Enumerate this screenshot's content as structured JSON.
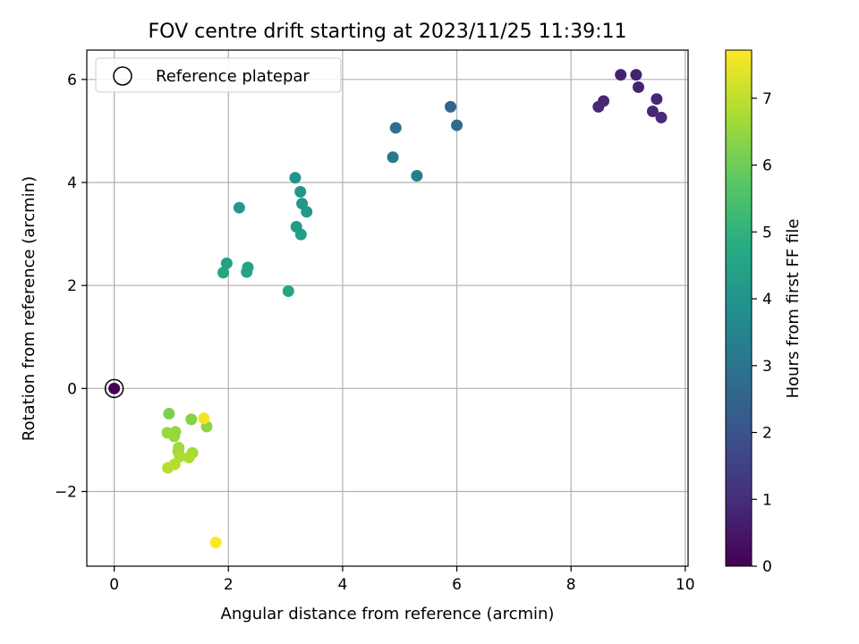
{
  "chart_data": {
    "type": "scatter",
    "title": "FOV centre drift starting at 2023/11/25 11:39:11",
    "xlabel": "Angular distance from reference (arcmin)",
    "ylabel": "Rotation from reference (arcmin)",
    "xlim": [
      -0.48,
      10.05
    ],
    "ylim": [
      -3.45,
      6.57
    ],
    "xticks": [
      0,
      2,
      4,
      6,
      8,
      10
    ],
    "yticks": [
      -2,
      0,
      2,
      4,
      6
    ],
    "grid": true,
    "legend": {
      "placement": "top-left",
      "entries": [
        "Reference platepar"
      ]
    },
    "reference_point": {
      "x": 0,
      "y": 0
    },
    "colorbar": {
      "label": "Hours from first FF file",
      "range": [
        0,
        7.72
      ],
      "ticks": [
        0,
        1,
        2,
        3,
        4,
        5,
        6,
        7
      ],
      "colormap": "viridis"
    },
    "points": [
      {
        "x": 0.0,
        "y": 0.0,
        "h": 0.0
      },
      {
        "x": 8.87,
        "y": 6.09,
        "h": 0.7
      },
      {
        "x": 9.14,
        "y": 6.09,
        "h": 0.72
      },
      {
        "x": 9.18,
        "y": 5.85,
        "h": 0.75
      },
      {
        "x": 9.5,
        "y": 5.62,
        "h": 0.8
      },
      {
        "x": 8.57,
        "y": 5.58,
        "h": 0.85
      },
      {
        "x": 8.48,
        "y": 5.47,
        "h": 0.88
      },
      {
        "x": 9.43,
        "y": 5.38,
        "h": 0.9
      },
      {
        "x": 9.58,
        "y": 5.26,
        "h": 0.95
      },
      {
        "x": 5.89,
        "y": 5.47,
        "h": 2.5
      },
      {
        "x": 6.0,
        "y": 5.11,
        "h": 2.7
      },
      {
        "x": 4.93,
        "y": 5.06,
        "h": 2.9
      },
      {
        "x": 4.88,
        "y": 4.49,
        "h": 3.1
      },
      {
        "x": 5.3,
        "y": 4.13,
        "h": 3.2
      },
      {
        "x": 3.17,
        "y": 4.09,
        "h": 4.0
      },
      {
        "x": 3.26,
        "y": 3.82,
        "h": 4.05
      },
      {
        "x": 3.29,
        "y": 3.59,
        "h": 4.1
      },
      {
        "x": 3.37,
        "y": 3.43,
        "h": 4.15
      },
      {
        "x": 2.19,
        "y": 3.51,
        "h": 4.2
      },
      {
        "x": 3.19,
        "y": 3.14,
        "h": 4.25
      },
      {
        "x": 3.27,
        "y": 2.99,
        "h": 4.3
      },
      {
        "x": 1.97,
        "y": 2.43,
        "h": 4.4
      },
      {
        "x": 2.34,
        "y": 2.35,
        "h": 4.45
      },
      {
        "x": 2.32,
        "y": 2.26,
        "h": 4.5
      },
      {
        "x": 1.91,
        "y": 2.25,
        "h": 4.55
      },
      {
        "x": 3.05,
        "y": 1.89,
        "h": 4.6
      },
      {
        "x": 0.96,
        "y": -0.49,
        "h": 6.2
      },
      {
        "x": 1.35,
        "y": -0.6,
        "h": 6.3
      },
      {
        "x": 1.62,
        "y": -0.74,
        "h": 6.4
      },
      {
        "x": 0.93,
        "y": -0.86,
        "h": 6.5
      },
      {
        "x": 1.07,
        "y": -0.84,
        "h": 6.5
      },
      {
        "x": 1.05,
        "y": -0.93,
        "h": 6.55
      },
      {
        "x": 1.13,
        "y": -1.15,
        "h": 6.6
      },
      {
        "x": 1.12,
        "y": -1.22,
        "h": 6.65
      },
      {
        "x": 1.37,
        "y": -1.25,
        "h": 6.7
      },
      {
        "x": 1.15,
        "y": -1.32,
        "h": 6.75
      },
      {
        "x": 1.31,
        "y": -1.34,
        "h": 6.8
      },
      {
        "x": 1.06,
        "y": -1.47,
        "h": 6.85
      },
      {
        "x": 0.94,
        "y": -1.54,
        "h": 6.9
      },
      {
        "x": 1.57,
        "y": -0.58,
        "h": 7.6
      },
      {
        "x": 1.78,
        "y": -2.99,
        "h": 7.72
      }
    ]
  }
}
